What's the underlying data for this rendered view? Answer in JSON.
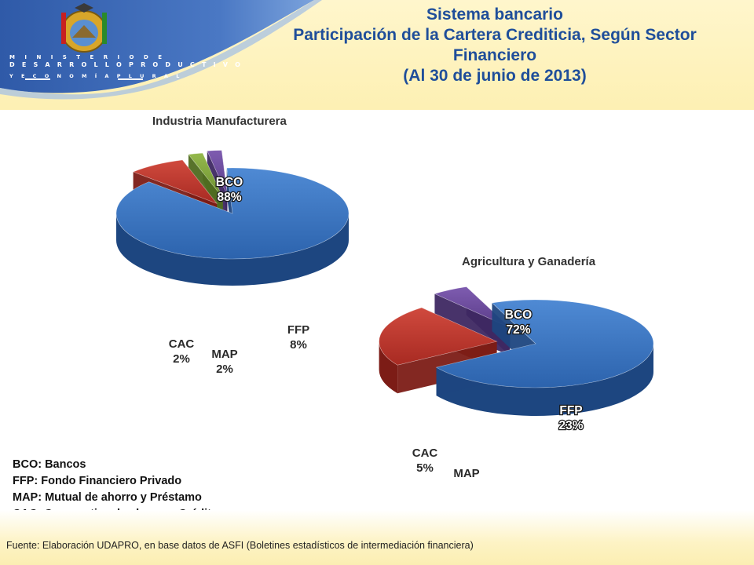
{
  "header": {
    "ministry_line1": "M I N I S T E R I O   D E",
    "ministry_line2": "D E S A R R O L L O   P R O D U C T I V O",
    "ministry_line3": "Y   E C O N O M Í A   P L U R A L",
    "title_line1": "Sistema bancario",
    "title_line2": "Participación de la Cartera Crediticia, Según Sector",
    "title_line3": "Financiero",
    "title_line4": "(Al 30 de junio de 2013)"
  },
  "colors": {
    "header_blue": "#3a63b0",
    "title_blue": "#1f4e9a",
    "bco": "#3a78c4",
    "ffp": "#c0342c",
    "map": "#7ea33a",
    "cac": "#6a4a9a"
  },
  "chart_data": [
    {
      "type": "pie",
      "title": "Industria Manufacturera",
      "categories": [
        "BCO",
        "FFP",
        "MAP",
        "CAC"
      ],
      "values": [
        88,
        8,
        2,
        2
      ],
      "labels": [
        "88%",
        "8%",
        "2%",
        "2%"
      ],
      "style": "3d-exploded"
    },
    {
      "type": "pie",
      "title": "Agricultura y Ganadería",
      "categories": [
        "BCO",
        "FFP",
        "MAP",
        "CAC"
      ],
      "values": [
        72,
        23,
        0,
        5
      ],
      "labels": [
        "72%",
        "23%",
        "",
        "5%"
      ],
      "style": "3d-exploded"
    }
  ],
  "legend": [
    "BCO: Bancos",
    "FFP: Fondo Financiero Privado",
    "MAP: Mutual de ahorro y Préstamo",
    "CAC; Cooperativa de ahorro y Crédito"
  ],
  "footer": {
    "source": "Fuente: Elaboración UDAPRO, en base datos de ASFI (Boletines estadísticos de intermediación financiera)"
  }
}
